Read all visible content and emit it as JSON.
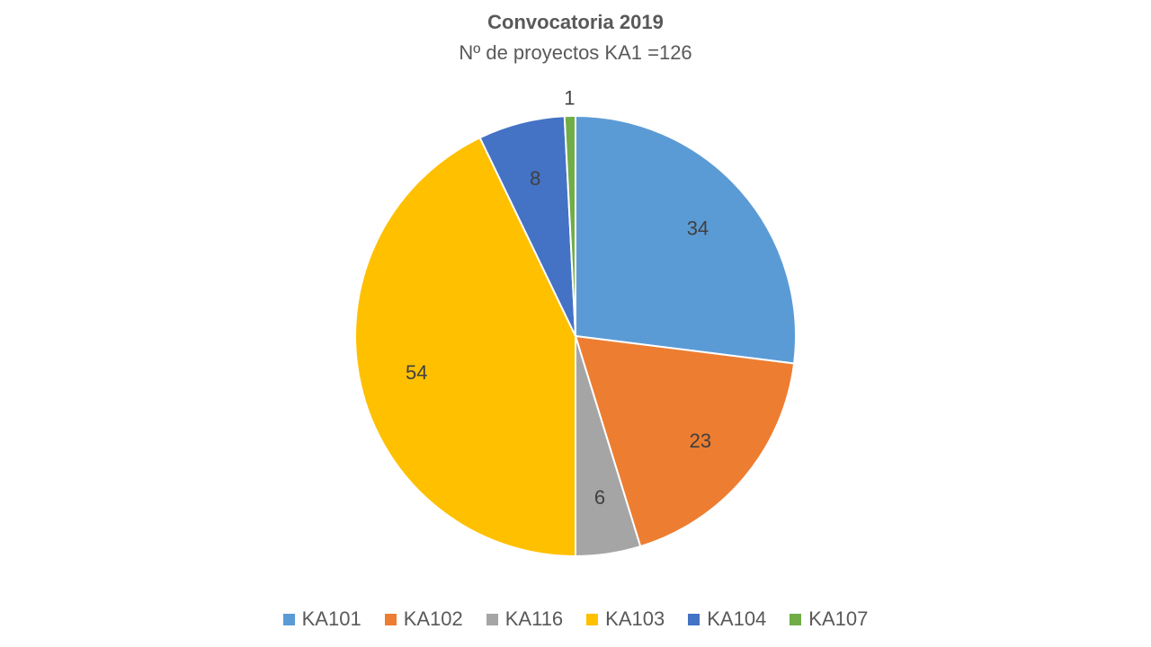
{
  "chart_data": {
    "type": "pie",
    "title": "Convocatoria 2019",
    "subtitle": "Nº de proyectos KA1 =126",
    "categories": [
      "KA101",
      "KA102",
      "KA116",
      "KA103",
      "KA104",
      "KA107"
    ],
    "values": [
      34,
      23,
      6,
      54,
      8,
      1
    ],
    "colors": [
      "#5B9BD5",
      "#ED7D31",
      "#A5A5A5",
      "#FFC000",
      "#4472C4",
      "#70AD47"
    ],
    "start_angle": "12 o'clock",
    "direction": "clockwise",
    "legend_position": "bottom",
    "data_labels": true
  }
}
